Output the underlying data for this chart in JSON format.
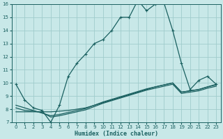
{
  "xlabel": "Humidex (Indice chaleur)",
  "bg_color": "#c8e8e8",
  "line_color": "#1a6060",
  "grid_color": "#a0cccc",
  "xlim": [
    -0.5,
    23.5
  ],
  "ylim": [
    7,
    16
  ],
  "yticks": [
    7,
    8,
    9,
    10,
    11,
    12,
    13,
    14,
    15,
    16
  ],
  "xticks": [
    0,
    1,
    2,
    3,
    4,
    5,
    6,
    7,
    8,
    9,
    10,
    11,
    12,
    13,
    14,
    15,
    16,
    17,
    18,
    19,
    20,
    21,
    22,
    23
  ],
  "curve1_x": [
    0,
    1,
    2,
    3,
    4,
    5,
    6,
    7,
    8,
    9,
    10,
    11,
    12,
    13,
    14,
    15,
    16,
    17,
    18,
    19,
    20,
    21,
    22,
    23
  ],
  "curve1_y": [
    9.9,
    8.7,
    8.1,
    7.9,
    7.0,
    8.3,
    10.5,
    11.5,
    12.2,
    13.0,
    13.3,
    14.0,
    15.0,
    15.0,
    16.3,
    15.5,
    16.0,
    16.1,
    14.0,
    11.5,
    9.5,
    10.2,
    10.5,
    9.9
  ],
  "curve2_x": [
    0,
    1,
    2,
    3,
    4,
    5,
    6,
    7,
    8,
    9,
    10,
    11,
    12,
    13,
    14,
    15,
    16,
    17,
    18,
    19,
    20,
    21,
    22,
    23
  ],
  "curve2_y": [
    7.8,
    7.8,
    7.8,
    7.8,
    7.8,
    7.85,
    7.9,
    8.0,
    8.1,
    8.3,
    8.5,
    8.7,
    8.9,
    9.1,
    9.3,
    9.5,
    9.7,
    9.85,
    10.0,
    9.3,
    9.4,
    9.5,
    9.7,
    9.9
  ],
  "curve3_x": [
    0,
    1,
    2,
    3,
    4,
    5,
    6,
    7,
    8,
    9,
    10,
    11,
    12,
    13,
    14,
    15,
    16,
    17,
    18,
    19,
    20,
    21,
    22,
    23
  ],
  "curve3_y": [
    8.3,
    8.1,
    7.9,
    7.7,
    7.5,
    7.6,
    7.75,
    7.9,
    8.05,
    8.3,
    8.55,
    8.75,
    8.95,
    9.15,
    9.35,
    9.55,
    9.7,
    9.85,
    10.0,
    9.3,
    9.4,
    9.5,
    9.7,
    9.85
  ],
  "curve4_x": [
    0,
    1,
    2,
    3,
    4,
    5,
    6,
    7,
    8,
    9,
    10,
    11,
    12,
    13,
    14,
    15,
    16,
    17,
    18,
    19,
    20,
    21,
    22,
    23
  ],
  "curve4_y": [
    8.1,
    7.9,
    7.85,
    7.75,
    7.4,
    7.5,
    7.65,
    7.8,
    7.95,
    8.2,
    8.45,
    8.65,
    8.85,
    9.05,
    9.25,
    9.45,
    9.6,
    9.75,
    9.9,
    9.2,
    9.3,
    9.4,
    9.6,
    9.75
  ],
  "marker_style": "+",
  "marker_size": 3.5,
  "line_width": 0.9
}
